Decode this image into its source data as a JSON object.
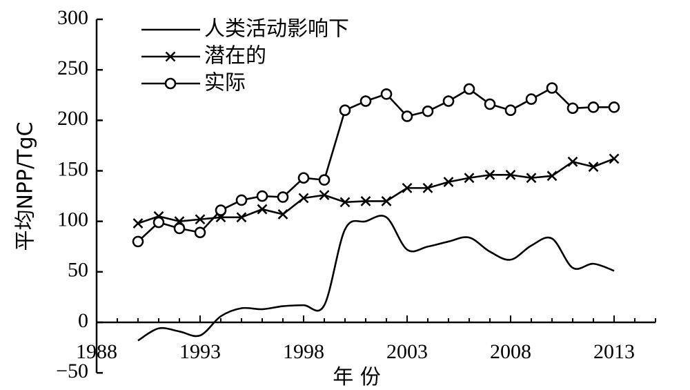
{
  "chart_data": {
    "type": "line",
    "xlabel": "年 份",
    "ylabel": "平均NPP/TgC",
    "xlim": [
      1988,
      2015
    ],
    "ylim": [
      -50,
      300
    ],
    "xticks": [
      1988,
      1993,
      1998,
      2003,
      2008,
      2013
    ],
    "yticks": [
      -50,
      0,
      50,
      100,
      150,
      200,
      250,
      300
    ],
    "x": [
      1990,
      1991,
      1992,
      1993,
      1994,
      1995,
      1996,
      1997,
      1998,
      1999,
      2000,
      2001,
      2002,
      2003,
      2004,
      2005,
      2006,
      2007,
      2008,
      2009,
      2010,
      2011,
      2012,
      2013
    ],
    "legend_position": "top-left",
    "series": [
      {
        "name": "人类活动影响下",
        "marker": "none",
        "smooth": true,
        "values": [
          -18,
          -6,
          -9,
          -13,
          6,
          14,
          13,
          16,
          17,
          17,
          92,
          100,
          104,
          72,
          75,
          80,
          84,
          70,
          62,
          76,
          83,
          54,
          58,
          51
        ]
      },
      {
        "name": "潜在的",
        "marker": "x",
        "values": [
          98,
          105,
          100,
          102,
          104,
          104,
          112,
          107,
          123,
          126,
          119,
          120,
          120,
          133,
          133,
          139,
          143,
          146,
          146,
          143,
          145,
          159,
          154,
          162
        ]
      },
      {
        "name": "实际",
        "marker": "circle",
        "values": [
          80,
          99,
          93,
          89,
          111,
          121,
          125,
          124,
          143,
          141,
          210,
          219,
          226,
          204,
          209,
          219,
          231,
          216,
          210,
          221,
          232,
          212,
          213,
          213
        ]
      }
    ]
  }
}
